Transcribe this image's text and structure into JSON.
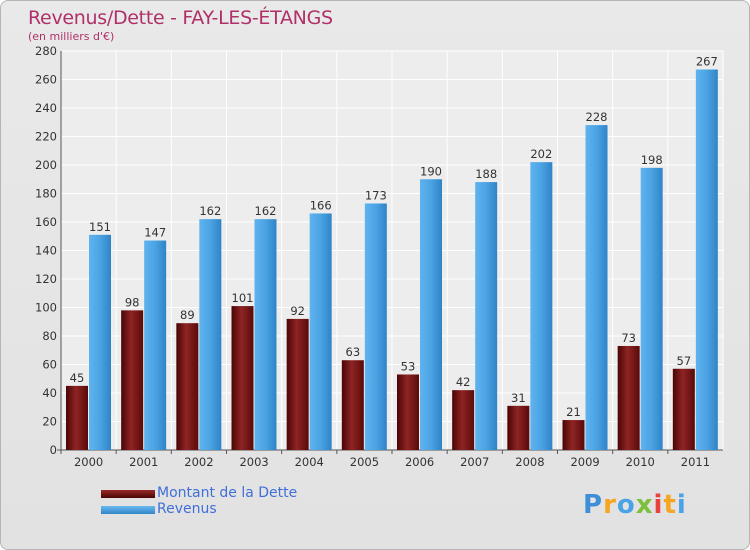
{
  "header": {
    "title": "Revenus/Dette - FAY-LES-ÉTANGS",
    "subtitle": "(en milliers d'€)"
  },
  "legend": {
    "items": [
      {
        "label": "Montant de la Dette",
        "color": "#6b0f0f"
      },
      {
        "label": "Revenus",
        "color": "#4aa3e6"
      }
    ]
  },
  "logo": {
    "text": "Proxiti",
    "letters": [
      "P",
      "r",
      "o",
      "x",
      "i",
      "t",
      "i"
    ],
    "colors": [
      "#3f8fd8",
      "#f5a623",
      "#4aa3e6",
      "#7bbf3a",
      "#e8423f",
      "#f5a623",
      "#4aa3e6"
    ]
  },
  "chart_data": {
    "type": "bar",
    "categories": [
      "2000",
      "2001",
      "2002",
      "2003",
      "2004",
      "2005",
      "2006",
      "2007",
      "2008",
      "2009",
      "2010",
      "2011"
    ],
    "series": [
      {
        "name": "Montant de la Dette",
        "color": "#6b0f0f",
        "values": [
          45,
          98,
          89,
          101,
          92,
          63,
          53,
          42,
          31,
          21,
          73,
          57
        ]
      },
      {
        "name": "Revenus",
        "color": "#4aa3e6",
        "values": [
          151,
          147,
          162,
          162,
          166,
          173,
          190,
          188,
          202,
          228,
          198,
          267
        ]
      }
    ],
    "title": "Revenus/Dette - FAY-LES-ÉTANGS",
    "ylabel": "(en milliers d'€)",
    "ylim": [
      0,
      280
    ],
    "yticks": [
      0,
      20,
      40,
      60,
      80,
      100,
      120,
      140,
      160,
      180,
      200,
      220,
      240,
      260,
      280
    ],
    "grid": true,
    "legend_position": "bottom-left"
  }
}
